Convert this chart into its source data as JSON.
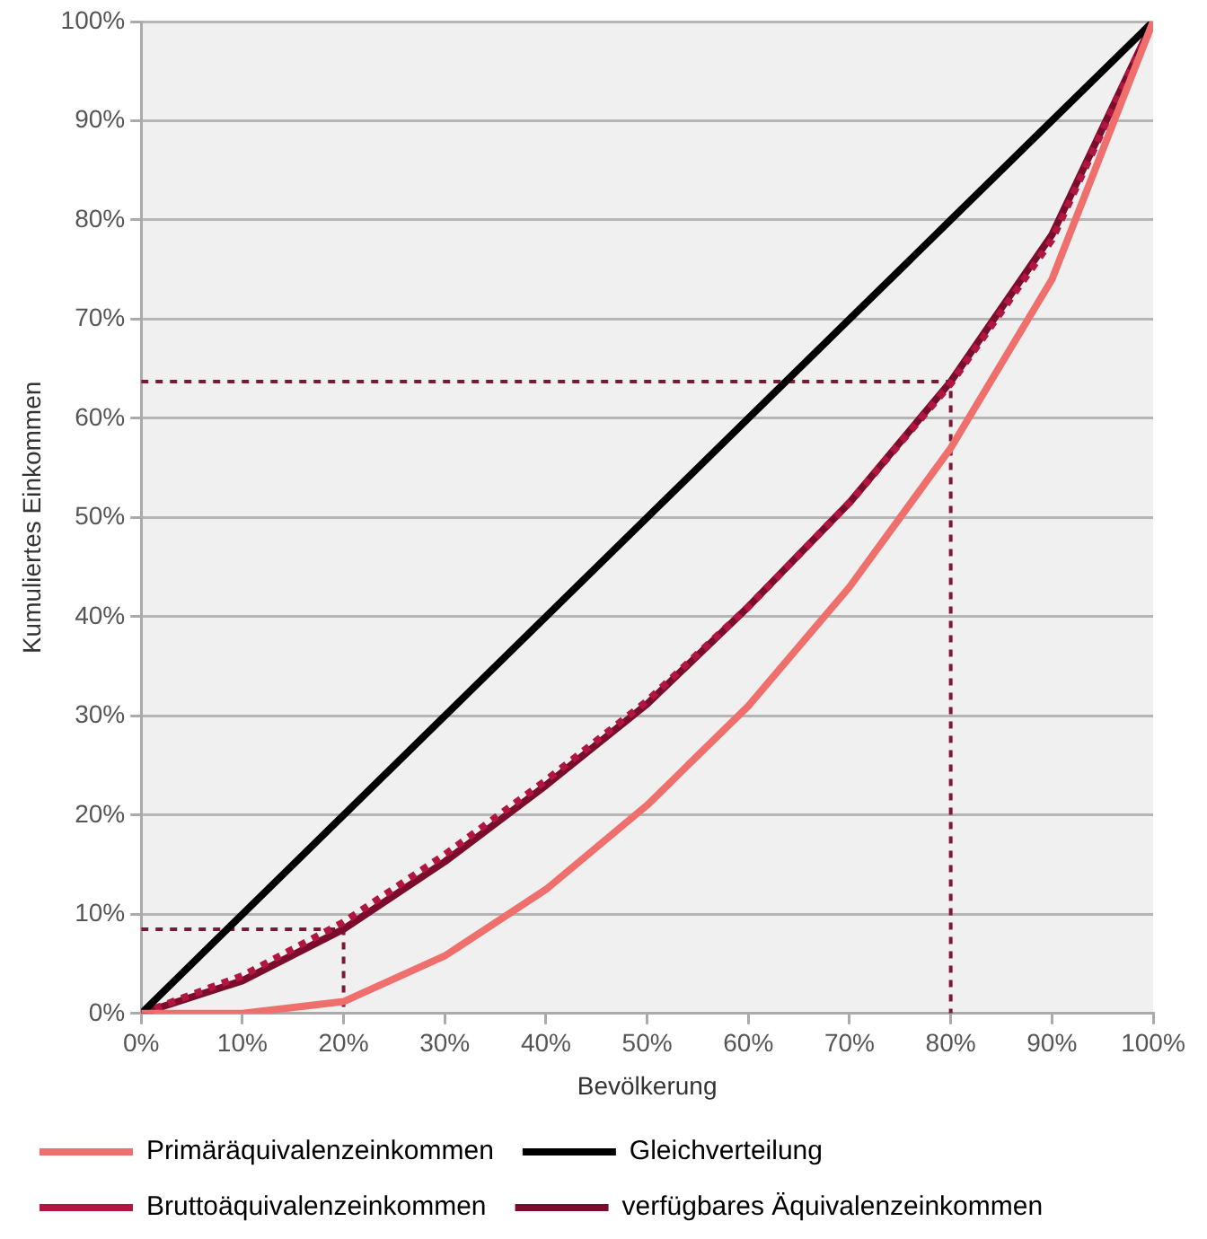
{
  "chart_data": {
    "type": "line",
    "xlabel": "Bevölkerung",
    "ylabel": "Kumuliertes Einkommen",
    "x": [
      0,
      10,
      20,
      30,
      40,
      50,
      60,
      70,
      80,
      90,
      100
    ],
    "xlim": [
      0,
      100
    ],
    "ylim": [
      0,
      100
    ],
    "xticks": [
      {
        "value": 0,
        "label": "0%"
      },
      {
        "value": 10,
        "label": "10%"
      },
      {
        "value": 20,
        "label": "20%"
      },
      {
        "value": 30,
        "label": "30%"
      },
      {
        "value": 40,
        "label": "40%"
      },
      {
        "value": 50,
        "label": "50%"
      },
      {
        "value": 60,
        "label": "60%"
      },
      {
        "value": 70,
        "label": "70%"
      },
      {
        "value": 80,
        "label": "80%"
      },
      {
        "value": 90,
        "label": "90%"
      },
      {
        "value": 100,
        "label": "100%"
      }
    ],
    "yticks": [
      {
        "value": 0,
        "label": "0%"
      },
      {
        "value": 10,
        "label": "10%"
      },
      {
        "value": 20,
        "label": "20%"
      },
      {
        "value": 30,
        "label": "30%"
      },
      {
        "value": 40,
        "label": "40%"
      },
      {
        "value": 50,
        "label": "50%"
      },
      {
        "value": 60,
        "label": "60%"
      },
      {
        "value": 70,
        "label": "70%"
      },
      {
        "value": 80,
        "label": "80%"
      },
      {
        "value": 90,
        "label": "90%"
      },
      {
        "value": 100,
        "label": "100%"
      }
    ],
    "grid": "y",
    "legend": "bottom",
    "marker": "none",
    "series": [
      {
        "name": "Primäräquivalenzeinkommen",
        "color": "#ef6f6c",
        "line_style": "solid",
        "values": [
          0,
          0,
          1.2,
          5.8,
          12.5,
          21,
          31,
          43,
          57,
          74,
          100
        ]
      },
      {
        "name": "Gleichverteilung",
        "color": "#000000",
        "line_style": "solid",
        "values": [
          0,
          10,
          20,
          30,
          40,
          50,
          60,
          70,
          80,
          90,
          100
        ]
      },
      {
        "name": "Bruttoäquivalenzeinkommen",
        "color": "#b0163f",
        "line_style": "dotted",
        "values": [
          0,
          3.8,
          9.2,
          16,
          23.5,
          31.5,
          41,
          51.5,
          63.5,
          78,
          100
        ]
      },
      {
        "name": "verfügbares Äquivalenzeinkommen",
        "color": "#7b0c2c",
        "line_style": "solid",
        "values": [
          0,
          3.3,
          8.5,
          15.3,
          23,
          31.2,
          41,
          51.5,
          63.7,
          78.5,
          100
        ]
      },
      {
        "color": "#7b1a35",
        "line_style": "dotted",
        "x": [
          0,
          20,
          20
        ],
        "values": [
          8.5,
          8.5,
          0
        ]
      },
      {
        "color": "#7b1a35",
        "line_style": "dotted",
        "x": [
          0,
          80,
          80
        ],
        "values": [
          63.7,
          63.7,
          0
        ]
      }
    ]
  }
}
